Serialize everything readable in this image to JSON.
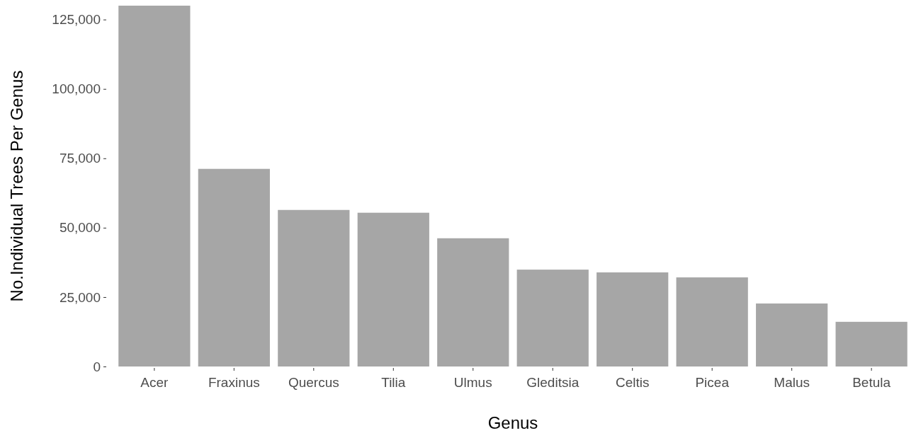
{
  "chart_data": {
    "type": "bar",
    "xlabel": "Genus",
    "ylabel": "No.Individual Trees Per Genus",
    "categories": [
      "Acer",
      "Fraxinus",
      "Quercus",
      "Tilia",
      "Ulmus",
      "Gleditsia",
      "Celtis",
      "Picea",
      "Malus",
      "Betula"
    ],
    "values": [
      130000,
      71200,
      56400,
      55400,
      46200,
      34900,
      33900,
      32100,
      22700,
      16100
    ],
    "color": "#a6a6a6",
    "ylim": [
      0,
      130000
    ],
    "yticks": [
      {
        "value": 0,
        "label": "0"
      },
      {
        "value": 25000,
        "label": "25,000"
      },
      {
        "value": 50000,
        "label": "50,000"
      },
      {
        "value": 75000,
        "label": "75,000"
      },
      {
        "value": 100000,
        "label": "100,000"
      },
      {
        "value": 125000,
        "label": "125,000"
      }
    ],
    "grid": false
  }
}
